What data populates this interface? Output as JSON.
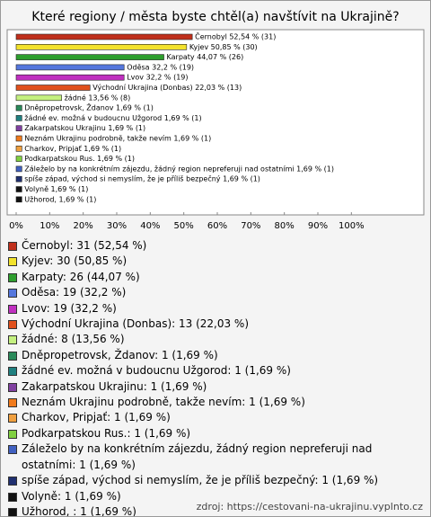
{
  "chart_data": {
    "type": "bar",
    "orientation": "horizontal",
    "title": "Které regiony / města byste chtěl(a) navštívit na Ukrajině?",
    "categories": [
      "Černobyl",
      "Kyjev",
      "Karpaty",
      "Oděsa",
      "Lvov",
      "Východní Ukrajina (Donbas)",
      "žádné",
      "Dněpropetrovsk, Ždanov",
      "žádné ev. možná v budoucnu Užgorod",
      "Zakarpatskou Ukrajinu",
      "Neznám Ukrajinu podrobně, takže nevím",
      "Charkov, Pripjať",
      "Podkarpatskou Rus.",
      "Záleželo by na konkrétním zájezdu, žádný region nepreferuji nad ostatními",
      "spíše západ, východ si nemyslím, že je příliš bezpečný",
      "Volyně",
      "Užhorod, "
    ],
    "values": [
      52.54,
      50.85,
      44.07,
      32.2,
      32.2,
      22.03,
      13.56,
      1.69,
      1.69,
      1.69,
      1.69,
      1.69,
      1.69,
      1.69,
      1.69,
      1.69,
      1.69
    ],
    "value_labels": [
      "Černobyl 52,54 % (31)",
      "Kyjev 50,85 % (30)",
      "Karpaty 44,07 % (26)",
      "Oděsa 32,2 % (19)",
      "Lvov 32,2 % (19)",
      "Východní Ukrajina (Donbas) 22,03 % (13)",
      "žádné 13,56 % (8)",
      "Dněpropetrovsk, Ždanov 1,69 % (1)",
      "žádné ev. možná v budoucnu Užgorod 1,69 % (1)",
      "Zakarpatskou Ukrajinu 1,69 % (1)",
      "Neznám Ukrajinu podrobně, takže nevím 1,69 % (1)",
      "Charkov, Pripjať 1,69 % (1)",
      "Podkarpatskou Rus. 1,69 % (1)",
      "Záleželo by na konkrétním zájezdu, žádný region nepreferuji nad ostatními 1,69 % (1)",
      "spíše západ, východ si nemyslím, že je příliš bezpečný 1,69 % (1)",
      "Volyně 1,69 % (1)",
      "Užhorod, 1,69 % (1)"
    ],
    "legend_labels": [
      "Černobyl: 31 (52,54 %)",
      "Kyjev: 30 (50,85 %)",
      "Karpaty: 26 (44,07 %)",
      "Oděsa: 19 (32,2 %)",
      "Lvov: 19 (32,2 %)",
      "Východní Ukrajina (Donbas): 13 (22,03 %)",
      "žádné: 8 (13,56 %)",
      "Dněpropetrovsk, Ždanov: 1 (1,69 %)",
      "žádné ev. možná v budoucnu Užgorod: 1 (1,69 %)",
      "Zakarpatskou Ukrajinu: 1 (1,69 %)",
      "Neznám Ukrajinu podrobně, takže nevím: 1 (1,69 %)",
      "Charkov, Pripjať: 1 (1,69 %)",
      "Podkarpatskou Rus.: 1 (1,69 %)",
      "Záleželo by na konkrétním zájezdu, žádný region nepreferuji nad ostatními: 1 (1,69 %)",
      "spíše západ, východ si nemyslím, že je příliš bezpečný: 1 (1,69 %)",
      "Volyně: 1 (1,69 %)",
      "Užhorod, : 1 (1,69 %)"
    ],
    "colors": [
      "#c0301c",
      "#f2e22c",
      "#2e9e2e",
      "#5577dd",
      "#c030c0",
      "#e0501c",
      "#c4f080",
      "#2a8a5a",
      "#208080",
      "#8040a0",
      "#f07a1c",
      "#f0a040",
      "#80d040",
      "#4060c0",
      "#203070",
      "#111111",
      "#111111"
    ],
    "xlim": [
      0,
      120
    ],
    "xticks": [
      {
        "value": 0,
        "label": "0%"
      },
      {
        "value": 10,
        "label": "10%"
      },
      {
        "value": 20,
        "label": "20%"
      },
      {
        "value": 30,
        "label": "30%"
      },
      {
        "value": 40,
        "label": "40%"
      },
      {
        "value": 50,
        "label": "50%"
      },
      {
        "value": 60,
        "label": "60%"
      },
      {
        "value": 70,
        "label": "70%"
      },
      {
        "value": 80,
        "label": "80%"
      },
      {
        "value": 90,
        "label": "90%"
      },
      {
        "value": 100,
        "label": "100%"
      }
    ],
    "source": "zdroj: https://cestovani-na-ukrajinu.vyplnto.cz"
  }
}
